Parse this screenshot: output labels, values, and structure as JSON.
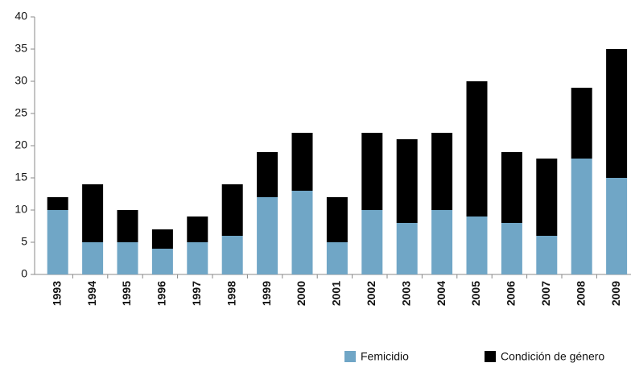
{
  "chart_data": {
    "type": "stacked_bar",
    "categories": [
      "1993",
      "1994",
      "1995",
      "1996",
      "1997",
      "1998",
      "1999",
      "2000",
      "2001",
      "2002",
      "2003",
      "2004",
      "2005",
      "2006",
      "2007",
      "2008",
      "2009"
    ],
    "series": [
      {
        "name": "Femicidio",
        "color": "#70a6c6",
        "values": [
          10,
          5,
          5,
          4,
          5,
          6,
          12,
          13,
          5,
          10,
          8,
          10,
          9,
          8,
          6,
          18,
          15
        ]
      },
      {
        "name": "Condición de género",
        "color": "#000000",
        "values": [
          2,
          9,
          5,
          3,
          4,
          8,
          7,
          9,
          7,
          12,
          13,
          12,
          21,
          11,
          12,
          11,
          20
        ]
      }
    ],
    "ylim": [
      0,
      40
    ],
    "yticks": [
      0,
      5,
      10,
      15,
      20,
      25,
      30,
      35,
      40
    ],
    "grid": false
  }
}
